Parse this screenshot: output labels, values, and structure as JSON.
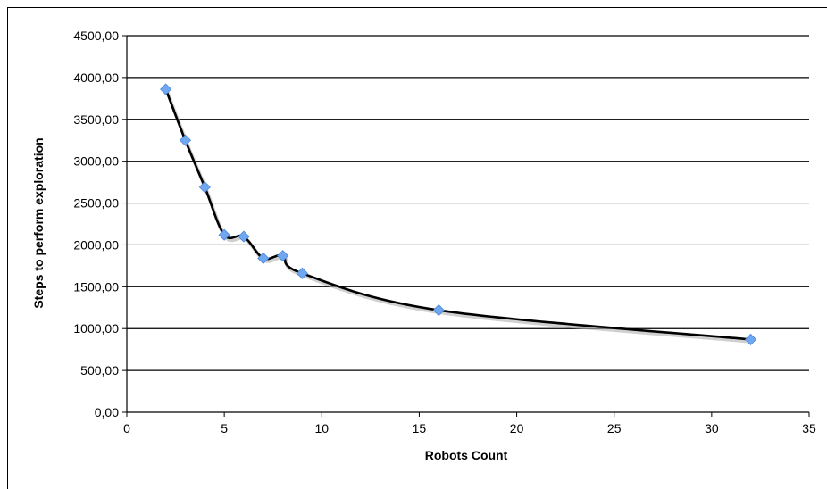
{
  "chart_data": {
    "type": "scatter",
    "title": "",
    "xlabel": "Robots Count",
    "ylabel": "Steps to perform exploration",
    "xlim": [
      0,
      35
    ],
    "ylim": [
      0,
      4500
    ],
    "x_ticks": [
      "0",
      "5",
      "10",
      "15",
      "20",
      "25",
      "30",
      "35"
    ],
    "y_ticks": [
      "0,00",
      "500,00",
      "1000,00",
      "1500,00",
      "2000,00",
      "2500,00",
      "3000,00",
      "3500,00",
      "4000,00",
      "4500,00"
    ],
    "grid": "horizontal",
    "line_color": "#000000",
    "marker_color": "#6fa8f0",
    "series": [
      {
        "x": [
          2,
          3,
          4,
          5,
          6,
          7,
          8,
          9,
          16,
          32
        ],
        "y": [
          3860,
          3250,
          2690,
          2120,
          2100,
          1840,
          1870,
          1660,
          1220,
          870
        ]
      }
    ]
  }
}
